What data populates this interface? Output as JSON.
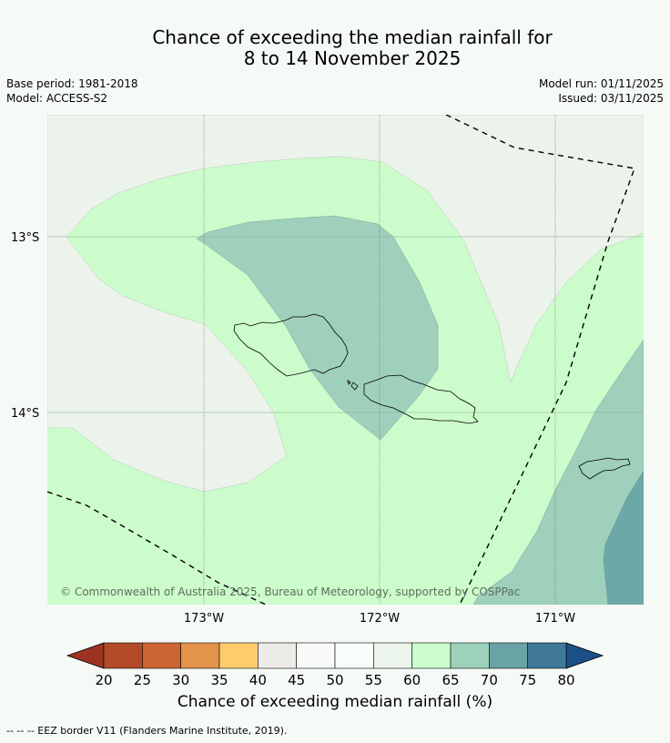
{
  "title": {
    "line1": "Chance of exceeding the median rainfall for",
    "line2": "8 to 14 November 2025"
  },
  "meta_left": {
    "base_period": "Base period: 1981-2018",
    "model": "Model: ACCESS-S2"
  },
  "meta_right": {
    "model_run": "Model run: 01/11/2025",
    "issued": "Issued: 03/11/2025"
  },
  "map": {
    "lat_labels": [
      "13°S",
      "14°S"
    ],
    "lon_labels": [
      "173°W",
      "172°W",
      "171°W"
    ],
    "copyright": "© Commonwealth of Australia 2025, Bureau of Meteorology, supported by COSPPac",
    "categories": [
      {
        "range": "45-60",
        "color": "#ebf3ea"
      },
      {
        "range": "60-65",
        "color": "#ccfccc"
      },
      {
        "range": "65-70",
        "color": "#9fd0bc"
      },
      {
        "range": "70-75",
        "color": "#6da8a9"
      }
    ]
  },
  "colorbar": {
    "ticks": [
      "20",
      "25",
      "30",
      "35",
      "40",
      "45",
      "50",
      "55",
      "60",
      "65",
      "70",
      "75",
      "80"
    ],
    "colors": [
      "#b34a27",
      "#cd6433",
      "#e3944a",
      "#fecc6b",
      "#edebe7",
      "#f8fbf8",
      "#f9fdf9",
      "#ebf5eb",
      "#ccfdcc",
      "#9dd1bc",
      "#6aa3a6",
      "#3f7899"
    ],
    "under_color": "#9c3320",
    "over_color": "#1c4f87",
    "label": "Chance of exceeding median rainfall (%)"
  },
  "footer": {
    "legend": "--  --  -- EEZ border V11 (Flanders Marine Institute, 2019)."
  }
}
